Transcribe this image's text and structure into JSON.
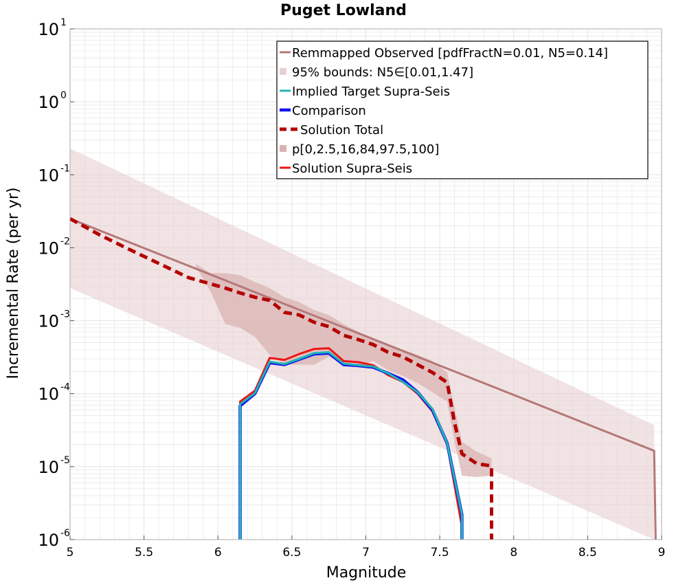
{
  "chart_data": {
    "type": "line",
    "title": "Puget Lowland",
    "xlabel": "Magnitude",
    "ylabel": "Incremental Rate (per yr)",
    "xlim": [
      5,
      9
    ],
    "ylim": [
      1e-06,
      10
    ],
    "y_scale": "log",
    "grid": true,
    "legend_position": "top-right",
    "x_ticks": [
      "5",
      "5.5",
      "6",
      "6.5",
      "7",
      "7.5",
      "8",
      "8.5",
      "9"
    ],
    "y_ticks": [
      {
        "base": "10",
        "exp": "1"
      },
      {
        "base": "10",
        "exp": "0"
      },
      {
        "base": "10",
        "exp": "-1"
      },
      {
        "base": "10",
        "exp": "-2"
      },
      {
        "base": "10",
        "exp": "-3"
      },
      {
        "base": "10",
        "exp": "-4"
      },
      {
        "base": "10",
        "exp": "-5"
      },
      {
        "base": "10",
        "exp": "-6"
      }
    ],
    "colors": {
      "observed": "#b47878",
      "bounds_fill": "#e8d0d0",
      "percentile_fill": "#d9b3b3",
      "implied_target": "#1fb5b5",
      "comparison": "#1414f0",
      "solution_total": "#b40000",
      "solution_supra": "#f01414",
      "grid": "#e4e4e4",
      "axis": "#aaaaaa"
    },
    "series": [
      {
        "name": "Remmapped Observed [pdfFractN=0.01, N5=0.14]",
        "style": "line",
        "x": [
          5.0,
          8.95,
          8.96
        ],
        "y": [
          0.025,
          1.65e-05,
          3e-07
        ]
      },
      {
        "name": "95% bounds: N5∈[0.01,1.47]",
        "style": "band",
        "x": [
          5.0,
          8.95
        ],
        "y_low": [
          0.0028,
          2.8e-07
        ],
        "y_high": [
          0.23,
          3.7e-05
        ]
      },
      {
        "name": "Implied Target Supra-Seis",
        "style": "line",
        "x": [
          6.15,
          6.25,
          6.35,
          6.45,
          6.55,
          6.65,
          6.75,
          6.85,
          6.95,
          7.05,
          7.15,
          7.25,
          7.35,
          7.45,
          7.55,
          7.65
        ],
        "y": [
          7.2e-05,
          0.000102,
          0.000275,
          0.000255,
          0.0003,
          0.00036,
          0.00037,
          0.000258,
          0.000245,
          0.000235,
          0.00019,
          0.000145,
          0.000105,
          6.2e-05,
          2.1e-05,
          2.2e-06
        ]
      },
      {
        "name": "Comparison",
        "style": "line",
        "x": [
          6.15,
          6.25,
          6.35,
          6.45,
          6.55,
          6.65,
          6.75,
          6.85,
          6.95,
          7.05,
          7.15,
          7.25,
          7.35,
          7.45,
          7.55,
          7.65
        ],
        "y": [
          6.8e-05,
          0.0001,
          0.000265,
          0.00025,
          0.000295,
          0.00035,
          0.00036,
          0.00025,
          0.000242,
          0.00023,
          0.00019,
          0.000155,
          0.000105,
          6e-05,
          2.1e-05,
          2.2e-06
        ]
      },
      {
        "name": "Solution Total",
        "style": "dashed",
        "x": [
          5.0,
          5.2,
          5.4,
          5.6,
          5.8,
          5.95,
          6.05,
          6.15,
          6.25,
          6.35,
          6.45,
          6.55,
          6.65,
          6.75,
          6.85,
          6.95,
          7.05,
          7.15,
          7.25,
          7.35,
          7.45,
          7.55,
          7.6,
          7.65,
          7.75,
          7.85,
          7.85
        ],
        "y": [
          0.025,
          0.015,
          0.0095,
          0.0061,
          0.0039,
          0.0032,
          0.0028,
          0.0024,
          0.0021,
          0.0019,
          0.0013,
          0.0012,
          0.00095,
          0.00083,
          0.00063,
          0.00055,
          0.00047,
          0.00037,
          0.00032,
          0.00025,
          0.000195,
          0.000142,
          4e-05,
          1.5e-05,
          1.1e-05,
          1.02e-05,
          9e-07
        ]
      },
      {
        "name": "p[0,2.5,16,84,97.5,100]",
        "style": "band",
        "x": [
          5.85,
          5.95,
          6.05,
          6.15,
          6.25,
          6.35,
          6.45,
          6.55,
          6.65,
          6.75,
          6.85,
          6.95,
          7.05,
          7.15,
          7.25,
          7.35,
          7.45,
          7.55,
          7.6,
          7.65,
          7.75,
          7.85
        ],
        "y_low": [
          0.0055,
          0.0025,
          0.0009,
          0.0008,
          0.0006,
          0.00034,
          0.00025,
          0.00025,
          0.00025,
          0.00032,
          0.00025,
          0.00024,
          0.00028,
          0.00021,
          0.000175,
          0.00014,
          0.000105,
          7.8e-05,
          2.2e-05,
          7.5e-06,
          7.2e-06,
          7.5e-06
        ],
        "y_high": [
          0.006,
          0.0045,
          0.0045,
          0.0042,
          0.0034,
          0.0028,
          0.0021,
          0.0018,
          0.0014,
          0.0012,
          0.0009,
          0.0007,
          0.00058,
          0.00048,
          0.0004,
          0.00034,
          0.00028,
          0.000195,
          6.5e-05,
          2.2e-05,
          1.6e-05,
          1.3e-05
        ]
      },
      {
        "name": "Solution Supra-Seis",
        "style": "line",
        "x": [
          6.15,
          6.25,
          6.35,
          6.45,
          6.55,
          6.65,
          6.75,
          6.85,
          6.95,
          7.05,
          7.15,
          7.25,
          7.35,
          7.45,
          7.55,
          7.65
        ],
        "y": [
          7.8e-05,
          0.00011,
          0.00031,
          0.00029,
          0.00035,
          0.00041,
          0.00042,
          0.00028,
          0.00027,
          0.000245,
          0.00018,
          0.000145,
          0.0001,
          5.7e-05,
          2e-05,
          1.5e-06
        ]
      }
    ]
  }
}
